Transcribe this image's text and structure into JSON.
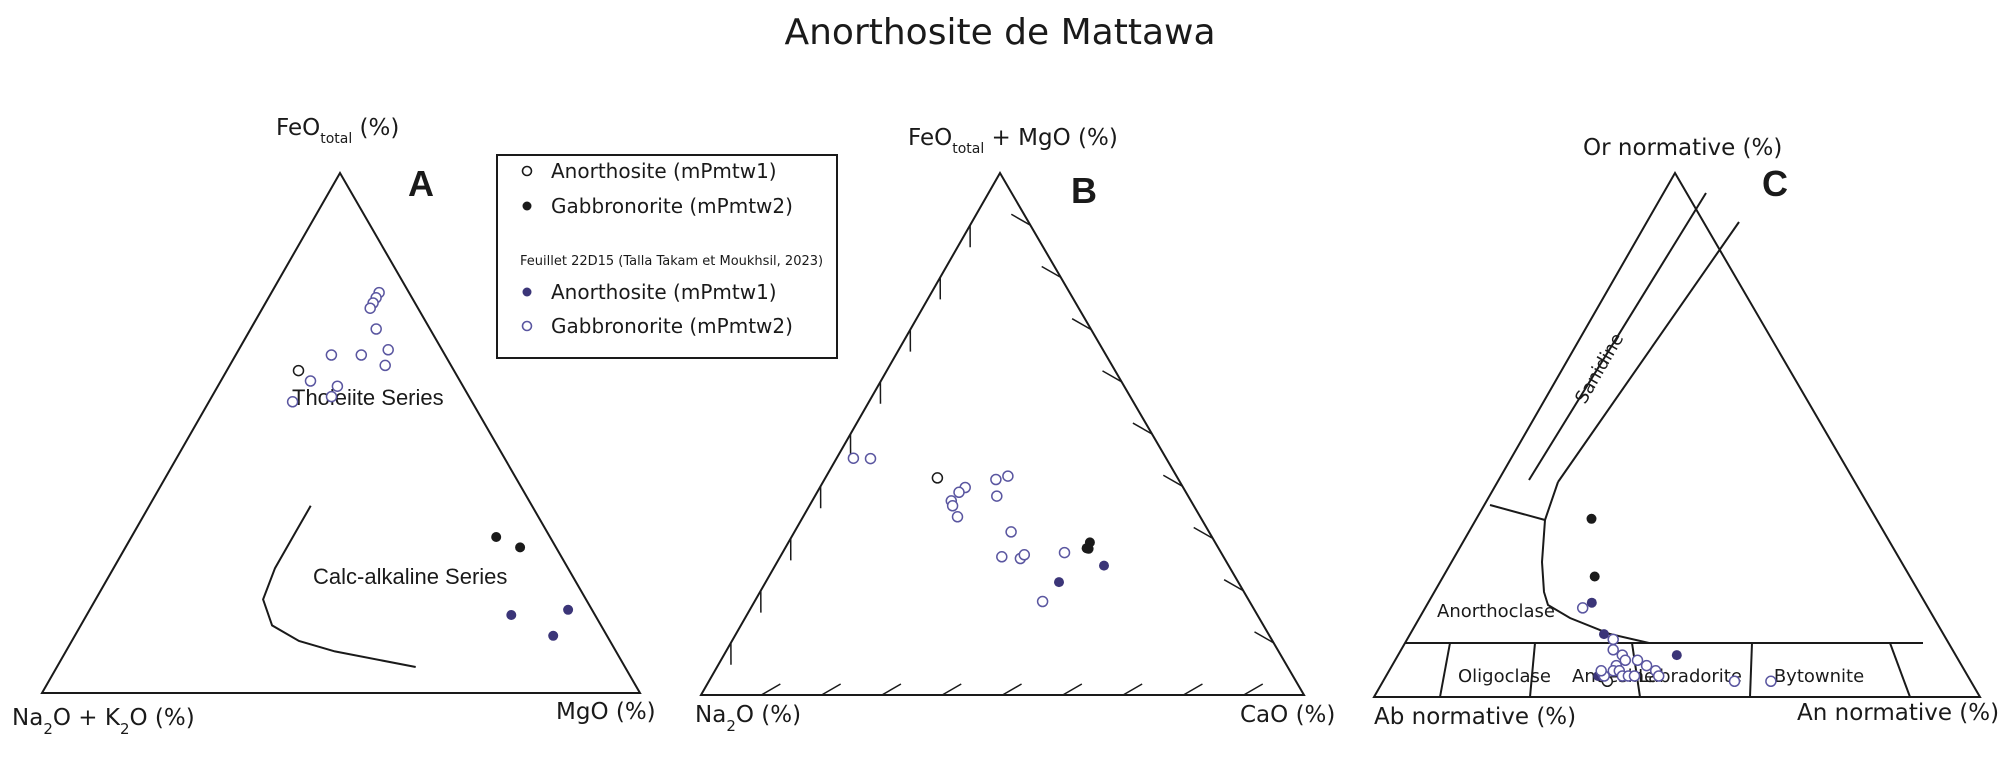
{
  "title": "Anorthosite de Mattawa",
  "colors": {
    "black": "#1a1a1a",
    "purple": "#3b3578",
    "purple_open": "#5a56a0",
    "line": "#1a1a1a"
  },
  "legend": {
    "items": [
      {
        "label": "Anorthosite (mPmtw1)",
        "marker": "open",
        "color": "#1a1a1a"
      },
      {
        "label": "Gabbronorite (mPmtw2)",
        "marker": "filled",
        "color": "#1a1a1a"
      }
    ],
    "source_note": "Feuillet 22D15 (Talla Takam et Moukhsil, 2023)",
    "source_items": [
      {
        "label": "Anorthosite (mPmtw1)",
        "marker": "filled",
        "color": "#3b3578"
      },
      {
        "label": "Gabbronorite (mPmtw2)",
        "marker": "open",
        "color": "#5a56a0"
      }
    ]
  },
  "chart_data": [
    {
      "type": "scatter",
      "diagram": "ternary",
      "panel": "A",
      "vertices": {
        "top": "FeOtotal (%)",
        "left": "Na2O + K2O (%)",
        "right": "MgO (%)"
      },
      "vertex_parts": {
        "top": [
          "FeO",
          "total",
          " (%)"
        ],
        "left": [
          "Na",
          "2",
          "O + K",
          "2",
          "O (%)"
        ],
        "right": [
          "MgO (%)"
        ]
      },
      "field_labels": [
        "Tholeiite Series",
        "Calc-alkaline Series"
      ],
      "boundary": [
        [
          5,
          35,
          60
        ],
        [
          8,
          47,
          45
        ],
        [
          10,
          52,
          38
        ],
        [
          13,
          55,
          32
        ],
        [
          18,
          54,
          28
        ],
        [
          24,
          49,
          27
        ],
        [
          31,
          42,
          27
        ],
        [
          36,
          37,
          27
        ]
      ],
      "series": [
        {
          "name": "Anorthosite (mPmtw1)",
          "marker": "open",
          "color": "#1a1a1a",
          "points": [
            [
              62,
              26,
              12
            ]
          ]
        },
        {
          "name": "Gabbronorite (mPmtw2)",
          "marker": "filled",
          "color": "#1a1a1a",
          "points": [
            [
              30,
              9,
              61
            ],
            [
              28,
              6,
              66
            ]
          ]
        },
        {
          "name": "Anorthosite (mPmtw1) — Feuillet 22D15",
          "marker": "filled",
          "color": "#3b3578",
          "points": [
            [
              11,
              9,
              80
            ],
            [
              16,
              4,
              80
            ],
            [
              15,
              14,
              71
            ]
          ]
        },
        {
          "name": "Gabbronorite (mPmtw2) — Feuillet 22D15",
          "marker": "open",
          "color": "#5a56a0",
          "points": [
            [
              77,
              5,
              18
            ],
            [
              76,
              6,
              18
            ],
            [
              75,
              7,
              18
            ],
            [
              74,
              8,
              18
            ],
            [
              70,
              9,
              21
            ],
            [
              66,
              9,
              25
            ],
            [
              63,
              11,
              26
            ],
            [
              65,
              14,
              21
            ],
            [
              65,
              19,
              16
            ],
            [
              59,
              21,
              20
            ],
            [
              57,
              23,
              20
            ],
            [
              60,
              25,
              15
            ],
            [
              56,
              30,
              14
            ]
          ]
        }
      ]
    },
    {
      "type": "scatter",
      "diagram": "ternary",
      "panel": "B",
      "vertices": {
        "top": "FeOtotal + MgO (%)",
        "left": "Na2O (%)",
        "right": "CaO (%)"
      },
      "vertex_parts": {
        "top": [
          "FeO",
          "total",
          " + MgO (%)"
        ],
        "left": [
          "Na",
          "2",
          "O (%)"
        ],
        "right": [
          "CaO (%)"
        ]
      },
      "tick_step": 10,
      "series": [
        {
          "name": "Anorthosite (mPmtw1)",
          "marker": "open",
          "color": "#1a1a1a",
          "points": [
            [
              47,
              45,
              21
            ]
          ]
        },
        {
          "name": "Gabbronorite (mPmtw2)",
          "marker": "filled",
          "color": "#1a1a1a",
          "points": [
            [
              38,
              27,
              65
            ],
            [
              35,
              27,
              63
            ],
            [
              36,
              28,
              64
            ]
          ]
        },
        {
          "name": "Anorthosite (mPmtw1) — Feuillet 22D15",
          "marker": "filled",
          "color": "#3b3578",
          "points": [
            [
              30,
              25,
              66
            ],
            [
              24,
              33,
              54
            ]
          ]
        },
        {
          "name": "Gabbronorite (mPmtw2) — Feuillet 22D15",
          "marker": "open",
          "color": "#5a56a0",
          "points": [
            [
              49,
              56,
              3
            ],
            [
              48,
              52,
              6
            ],
            [
              45,
              33,
              31
            ],
            [
              39,
              26,
              28
            ],
            [
              33,
              30,
              20
            ],
            [
              33,
              32,
              20
            ],
            [
              21,
              20,
              36
            ],
            [
              29,
              31,
              18
            ],
            [
              29,
              32,
              19
            ],
            [
              28,
              33,
              21
            ],
            [
              24,
              20,
              19
            ],
            [
              20,
              21,
              23
            ],
            [
              17,
              22,
              26
            ],
            [
              18,
              22,
              27
            ],
            [
              18,
              25,
              25
            ],
            [
              12,
              23,
              32
            ]
          ]
        }
      ]
    },
    {
      "type": "scatter",
      "diagram": "ternary",
      "panel": "C",
      "vertices": {
        "top": "Or normative (%)",
        "left": "Ab normative (%)",
        "right": "An normative (%)"
      },
      "vertex_parts": {
        "top": [
          "Or normative (%)"
        ],
        "left": [
          "Ab normative (%)"
        ],
        "right": [
          "An normative (%)"
        ]
      },
      "fields": [
        "Sanidine",
        "Anorthoclase",
        "Oligoclase",
        "Andésine",
        "Labradorite",
        "Bytownite"
      ],
      "series": [
        {
          "name": "Anorthosite (mPmtw1)",
          "marker": "open",
          "color": "#1a1a1a",
          "points": [
            [
              3,
              60,
              37
            ]
          ]
        },
        {
          "name": "Gabbronorite (mPmtw2)",
          "marker": "filled",
          "color": "#1a1a1a",
          "points": [
            [
              34,
              47,
              19
            ],
            [
              23,
              52,
              25
            ]
          ]
        },
        {
          "name": "Anorthosite (mPmtw1) — Feuillet 22D15",
          "marker": "filled",
          "color": "#3b3578",
          "points": [
            [
              18,
              55,
              27
            ],
            [
              12,
              56,
              32
            ],
            [
              4,
              61,
              35
            ],
            [
              8,
              46,
              46
            ]
          ]
        },
        {
          "name": "Gabbronorite (mPmtw2) — Feuillet 22D15",
          "marker": "open",
          "color": "#5a56a0",
          "points": [
            [
              17,
              57,
              26
            ],
            [
              11,
              55,
              34
            ],
            [
              9,
              56,
              35
            ],
            [
              8,
              55,
              37
            ],
            [
              7,
              55,
              38
            ],
            [
              6,
              57,
              37
            ],
            [
              5,
              58,
              37
            ],
            [
              5,
              57,
              38
            ],
            [
              4,
              57,
              39
            ],
            [
              4,
              56,
              40
            ],
            [
              4,
              55,
              41
            ],
            [
              7,
              53,
              40
            ],
            [
              6,
              52,
              42
            ],
            [
              5,
              51,
              44
            ],
            [
              4,
              51,
              45
            ],
            [
              4,
              60,
              36
            ],
            [
              5,
              60,
              35
            ],
            [
              3,
              39,
              58
            ],
            [
              3,
              33,
              64
            ]
          ]
        }
      ]
    }
  ]
}
